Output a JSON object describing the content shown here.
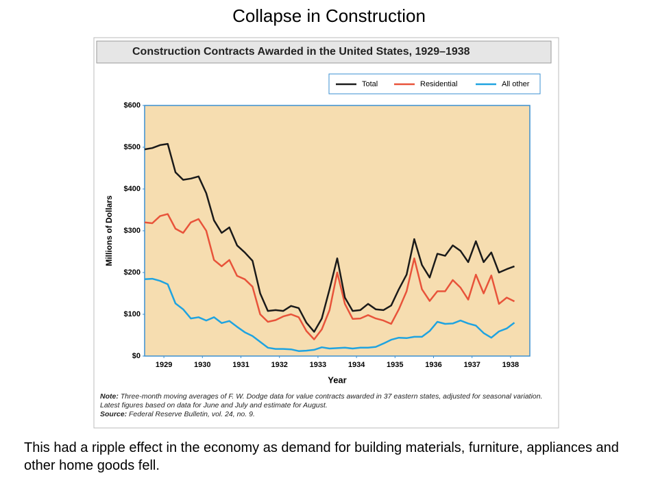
{
  "slide_title": "Collapse in Construction",
  "caption": "This had a ripple effect in the economy as demand for building materials, furniture, appliances and other home goods fell.",
  "chart_data": {
    "type": "line",
    "title": "Construction Contracts Awarded in the United States, 1929–1938",
    "xlabel": "Year",
    "ylabel": "Millions of Dollars",
    "legend": "top-right",
    "x": [
      1929,
      1929.2,
      1929.4,
      1929.6,
      1929.8,
      1930,
      1930.2,
      1930.4,
      1930.6,
      1930.8,
      1931,
      1931.2,
      1931.4,
      1931.6,
      1931.8,
      1932,
      1932.2,
      1932.4,
      1932.6,
      1932.8,
      1933,
      1933.2,
      1933.4,
      1933.6,
      1933.8,
      1934,
      1934.2,
      1934.4,
      1934.6,
      1934.8,
      1935,
      1935.2,
      1935.4,
      1935.6,
      1935.8,
      1936,
      1936.2,
      1936.4,
      1936.6,
      1936.8,
      1937,
      1937.2,
      1937.4,
      1937.6,
      1937.8,
      1938,
      1938.2,
      1938.4,
      1938.6
    ],
    "series": [
      {
        "name": "Total",
        "color": "#1a1a1a",
        "values": [
          495,
          498,
          505,
          508,
          440,
          422,
          425,
          430,
          390,
          325,
          295,
          308,
          265,
          248,
          228,
          150,
          108,
          110,
          108,
          120,
          115,
          80,
          58,
          90,
          160,
          234,
          140,
          108,
          110,
          125,
          112,
          110,
          121,
          160,
          195,
          280,
          218,
          188,
          245,
          240,
          265,
          252,
          225,
          275,
          225,
          248,
          200,
          208,
          215
        ]
      },
      {
        "name": "Residential",
        "color": "#e8533a",
        "values": [
          320,
          318,
          335,
          340,
          305,
          295,
          320,
          328,
          300,
          230,
          215,
          230,
          192,
          184,
          166,
          100,
          82,
          86,
          95,
          100,
          93,
          60,
          40,
          64,
          110,
          200,
          125,
          89,
          90,
          98,
          90,
          85,
          77,
          112,
          155,
          234,
          160,
          132,
          155,
          155,
          182,
          164,
          135,
          195,
          150,
          193,
          125,
          140,
          131
        ]
      },
      {
        "name": "All other",
        "color": "#1fa3e0",
        "values": [
          184,
          185,
          180,
          172,
          126,
          112,
          90,
          93,
          85,
          93,
          79,
          84,
          70,
          57,
          48,
          34,
          20,
          17,
          17,
          16,
          12,
          13,
          15,
          21,
          18,
          19,
          20,
          18,
          20,
          20,
          22,
          30,
          39,
          44,
          43,
          46,
          46,
          60,
          82,
          77,
          78,
          85,
          78,
          73,
          55,
          44,
          59,
          66,
          80
        ]
      }
    ],
    "xlim": [
      1929,
      1939
    ],
    "xticks": [
      {
        "value": 1929.5,
        "label": "1929"
      },
      {
        "value": 1930.5,
        "label": "1930"
      },
      {
        "value": 1931.5,
        "label": "1931"
      },
      {
        "value": 1932.5,
        "label": "1932"
      },
      {
        "value": 1933.5,
        "label": "1933"
      },
      {
        "value": 1934.5,
        "label": "1934"
      },
      {
        "value": 1935.5,
        "label": "1935"
      },
      {
        "value": 1936.5,
        "label": "1936"
      },
      {
        "value": 1937.5,
        "label": "1937"
      },
      {
        "value": 1938.5,
        "label": "1938"
      }
    ],
    "ylim": [
      0,
      600
    ],
    "yticks": [
      {
        "value": 0,
        "label": "$0"
      },
      {
        "value": 100,
        "label": "$100"
      },
      {
        "value": 200,
        "label": "$200"
      },
      {
        "value": 300,
        "label": "$300"
      },
      {
        "value": 400,
        "label": "$400"
      },
      {
        "value": 500,
        "label": "$500"
      },
      {
        "value": 600,
        "label": "$600"
      }
    ],
    "note_label": "Note:",
    "note": "Three-month moving averages of F. W. Dodge data for value contracts awarded in 37 eastern states, adjusted for seasonal variation. Latest figures based on data for June and July and estimate for August.",
    "source_label": "Source:",
    "source": "Federal Reserve Bulletin, vol. 24, no. 9."
  }
}
